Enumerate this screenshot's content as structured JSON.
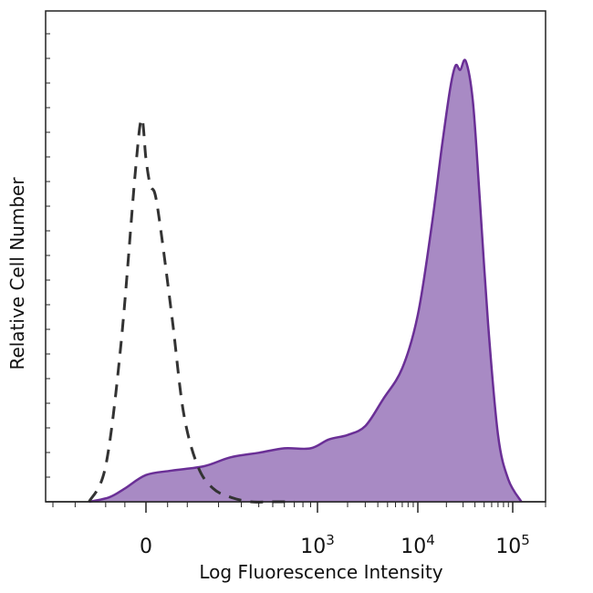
{
  "chart_data": {
    "type": "area",
    "title": "",
    "xlabel": "Log Fluorescence Intensity",
    "ylabel": "Relative Cell Number",
    "x_scale": "biexponential",
    "xlim": [
      -300,
      200000
    ],
    "ylim": [
      0,
      1
    ],
    "grid": false,
    "legend": "none",
    "x_ticks": [
      {
        "value": 0,
        "base": "0",
        "exp": ""
      },
      {
        "value": 1000,
        "base": "10",
        "exp": "3"
      },
      {
        "value": 10000,
        "base": "10",
        "exp": "4"
      },
      {
        "value": 100000,
        "base": "10",
        "exp": "5"
      }
    ],
    "series": [
      {
        "style": "dashed",
        "color": "#333333",
        "x": [
          -150,
          -100,
          -60,
          -25,
          -10,
          0,
          10,
          25,
          60,
          90,
          130,
          180,
          250,
          350,
          500,
          700
        ],
        "y": [
          0.0,
          0.08,
          0.35,
          0.74,
          0.86,
          0.77,
          0.71,
          0.67,
          0.42,
          0.2,
          0.08,
          0.03,
          0.01,
          0.0,
          0.0,
          0.0
        ]
      },
      {
        "style": "filled",
        "color": "#6a2f96",
        "fill": "#a88ac4",
        "x": [
          -150,
          -90,
          -50,
          0,
          60,
          150,
          250,
          400,
          600,
          900,
          1300,
          2000,
          3000,
          4500,
          7000,
          10000,
          14000,
          18000,
          22000,
          25000,
          28000,
          32000,
          38000,
          45000,
          55000,
          70000,
          90000,
          120000
        ],
        "y": [
          0.0,
          0.01,
          0.03,
          0.06,
          0.07,
          0.08,
          0.1,
          0.11,
          0.12,
          0.12,
          0.14,
          0.15,
          0.17,
          0.23,
          0.3,
          0.42,
          0.62,
          0.8,
          0.93,
          0.98,
          0.97,
          0.99,
          0.9,
          0.68,
          0.4,
          0.15,
          0.05,
          0.0
        ]
      }
    ]
  }
}
